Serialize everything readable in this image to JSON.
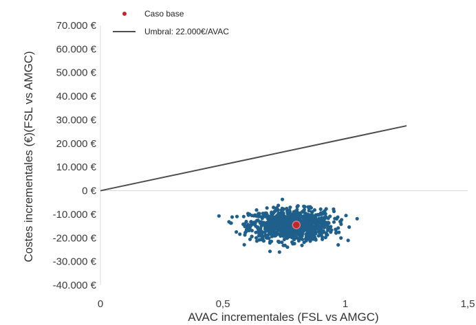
{
  "chart_data": {
    "type": "scatter",
    "header_text": "",
    "xlabel": "AVAC incrementales (FSL vs AMGC)",
    "ylabel": "Costes incrementales (€)(FSL vs AMGC)",
    "xlim": [
      0,
      1.5
    ],
    "ylim": [
      -40000,
      70000
    ],
    "x_ticks": [
      0,
      0.5,
      1,
      1.5
    ],
    "x_tick_labels": [
      "0",
      "0,5",
      "1",
      "1,5"
    ],
    "y_ticks": [
      70000,
      60000,
      50000,
      40000,
      30000,
      20000,
      10000,
      0,
      -10000,
      -20000,
      -30000,
      -40000
    ],
    "y_tick_labels": [
      "70.000 €",
      "60.000 €",
      "50.000 €",
      "40.000 €",
      "30.000 €",
      "20.000 €",
      "10.000 €",
      "0 €",
      "-10.000 €",
      "-20.000 €",
      "-30.000 €",
      "-40.000 €"
    ],
    "legend": [
      {
        "label": "Caso base",
        "marker": "dot",
        "color": "#c0282d"
      },
      {
        "label": "Umbral: 22.000€/AVAC",
        "marker": "line",
        "color": "#555555"
      }
    ],
    "legend_position": "top-left",
    "base_case": {
      "x": 0.8,
      "y": -14500
    },
    "threshold": {
      "wtp": 22000,
      "x_start": 0,
      "x_end": 1.25
    },
    "scatter": {
      "color": "#1f5f8b",
      "center_x": 0.78,
      "center_y": -14500,
      "spread_x": 0.085,
      "spread_y": 3300,
      "n_points": 1000,
      "x_range": [
        0.43,
        1.08
      ],
      "y_range": [
        -26000,
        500
      ]
    },
    "grid": false
  }
}
